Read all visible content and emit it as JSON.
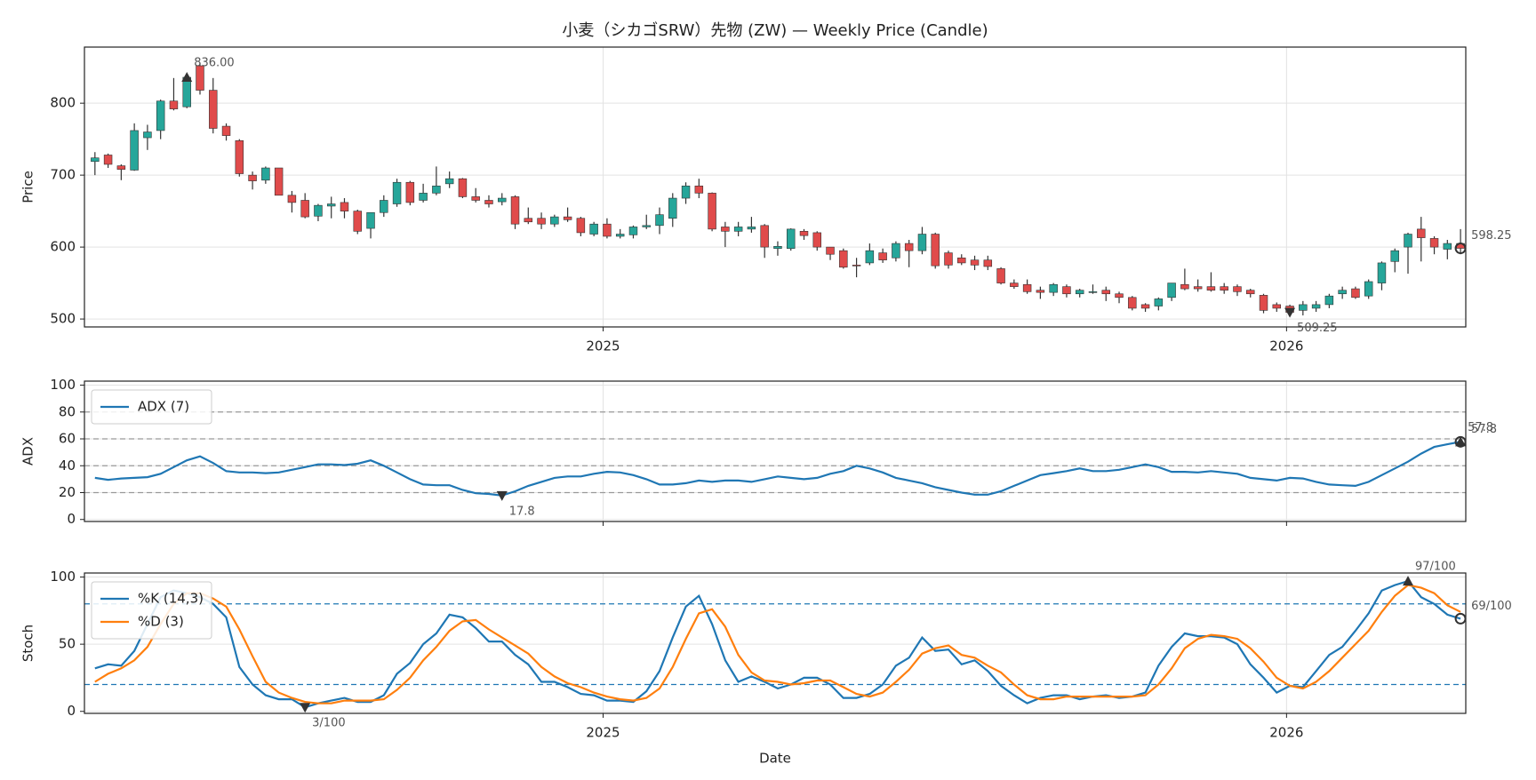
{
  "chart_data": [
    {
      "type": "candlestick",
      "title": "小麦（シカゴSRW）先物 (ZW) — Weekly Price (Candle)",
      "y_label": "Price",
      "up_color": "#26a69a",
      "down_color": "#e04b4b",
      "grid": true,
      "xlim": [
        -0.8,
        104.4
      ],
      "xticks": [
        {
          "value": 38.7,
          "label": "2025"
        },
        {
          "value": 90.75,
          "label": "2026"
        }
      ],
      "ylim": [
        489,
        878
      ],
      "yticks": [
        500,
        600,
        700,
        800
      ],
      "open": [
        719,
        728,
        713,
        707,
        752,
        762,
        803,
        795,
        852,
        818,
        768,
        748,
        700,
        693,
        710,
        672,
        665,
        643,
        657,
        662,
        650,
        626,
        648,
        660,
        690,
        665,
        675,
        688,
        695,
        670,
        665,
        663,
        670,
        640,
        640,
        632,
        642,
        640,
        618,
        632,
        615,
        617,
        628,
        630,
        640,
        668,
        685,
        675,
        628,
        622,
        625,
        630,
        598,
        598,
        622,
        620,
        600,
        595,
        575,
        578,
        592,
        585,
        605,
        595,
        618,
        592,
        585,
        582,
        582,
        570,
        550,
        548,
        540,
        537,
        545,
        535,
        537,
        540,
        535,
        530,
        520,
        518,
        530,
        548,
        545,
        545,
        545,
        545,
        540,
        533,
        520,
        518,
        512,
        515,
        520,
        535,
        542,
        532,
        550,
        580,
        600,
        625,
        612,
        597,
        605
      ],
      "high": [
        732,
        730,
        715,
        772,
        770,
        805,
        835,
        836,
        856,
        835,
        772,
        750,
        705,
        712,
        710,
        678,
        675,
        660,
        670,
        668,
        652,
        648,
        672,
        695,
        692,
        688,
        712,
        705,
        696,
        682,
        672,
        675,
        672,
        655,
        648,
        645,
        655,
        642,
        635,
        640,
        625,
        630,
        645,
        655,
        675,
        690,
        695,
        676,
        635,
        635,
        642,
        632,
        608,
        626,
        625,
        622,
        600,
        598,
        585,
        605,
        598,
        608,
        610,
        628,
        620,
        595,
        590,
        588,
        588,
        572,
        555,
        555,
        545,
        550,
        548,
        542,
        548,
        545,
        538,
        532,
        522,
        530,
        550,
        570,
        555,
        565,
        550,
        548,
        542,
        535,
        523,
        520,
        525,
        525,
        535,
        545,
        545,
        555,
        580,
        598,
        620,
        642,
        615,
        610,
        625
      ],
      "low": [
        700,
        710,
        693,
        706,
        735,
        750,
        790,
        793,
        812,
        758,
        748,
        698,
        680,
        688,
        672,
        648,
        640,
        636,
        640,
        640,
        618,
        612,
        642,
        656,
        658,
        662,
        672,
        682,
        668,
        662,
        655,
        658,
        625,
        632,
        625,
        628,
        635,
        615,
        615,
        612,
        612,
        612,
        625,
        618,
        628,
        660,
        668,
        622,
        600,
        615,
        620,
        585,
        588,
        595,
        610,
        595,
        582,
        570,
        558,
        575,
        578,
        580,
        572,
        590,
        570,
        570,
        575,
        568,
        568,
        548,
        542,
        535,
        528,
        532,
        530,
        530,
        535,
        525,
        522,
        512,
        510,
        512,
        525,
        540,
        538,
        538,
        535,
        532,
        530,
        508,
        510,
        507,
        505,
        510,
        515,
        528,
        528,
        528,
        540,
        565,
        563,
        580,
        590,
        583,
        590
      ],
      "close": [
        724,
        715,
        708,
        762,
        760,
        803,
        792,
        836,
        818,
        765,
        755,
        702,
        692,
        710,
        672,
        662,
        642,
        658,
        660,
        650,
        622,
        648,
        665,
        690,
        662,
        675,
        685,
        695,
        670,
        665,
        660,
        668,
        632,
        635,
        632,
        642,
        638,
        620,
        632,
        615,
        618,
        628,
        630,
        645,
        668,
        685,
        675,
        625,
        622,
        628,
        628,
        600,
        601,
        625,
        616,
        600,
        590,
        572,
        574,
        595,
        582,
        605,
        595,
        618,
        574,
        575,
        578,
        575,
        573,
        550,
        545,
        538,
        537,
        548,
        535,
        540,
        538,
        535,
        530,
        515,
        515,
        528,
        550,
        542,
        542,
        540,
        540,
        538,
        535,
        512,
        515,
        509.25,
        520,
        520,
        532,
        540,
        530,
        552,
        578,
        595,
        618,
        613,
        600,
        605,
        598.25
      ],
      "annotations": [
        {
          "index": 7,
          "value": 836,
          "label": "836.00",
          "marker": "^"
        },
        {
          "index": 91,
          "value": 509.25,
          "marker": "v"
        },
        {
          "index": 104,
          "value": 598.25,
          "marker": "o"
        }
      ]
    },
    {
      "type": "line",
      "y_label": "ADX",
      "grid": true,
      "legend": "upper left",
      "xlim": [
        -0.8,
        104.4
      ],
      "ylim": [
        -1.5,
        103
      ],
      "yticks": [
        0,
        20,
        40,
        60,
        80,
        100
      ],
      "hlines": [
        20,
        40,
        60,
        80
      ],
      "hline_color": "#999999",
      "series": [
        {
          "name": "ADX (7)",
          "color": "#1f77b4",
          "values": [
            31,
            29.5,
            30.5,
            31,
            31.5,
            34,
            39,
            44,
            47,
            42,
            36,
            35,
            35,
            34.5,
            35,
            37,
            39,
            41,
            41,
            40.5,
            41.5,
            44,
            40,
            35,
            30,
            26,
            25.5,
            25.5,
            22,
            19.5,
            19,
            17.8,
            21,
            25,
            28,
            31,
            32,
            32,
            34,
            35.5,
            35,
            33,
            30,
            26,
            26,
            27,
            29,
            28,
            29,
            29,
            28,
            30,
            32,
            31,
            30,
            31,
            34,
            36,
            40,
            38,
            35,
            31,
            29,
            27,
            24,
            22,
            20,
            18.5,
            18.5,
            21,
            25,
            29,
            33,
            34.5,
            36,
            38,
            36,
            36,
            37,
            39,
            41,
            39,
            35.5,
            35.5,
            35,
            36,
            35,
            34,
            31,
            30,
            29,
            31,
            30.5,
            28,
            26,
            25.5,
            25,
            28,
            33,
            38,
            43,
            49,
            54,
            56,
            57.8
          ]
        }
      ],
      "annotations": [
        {
          "index": 31,
          "value": 17.8,
          "marker": "v"
        },
        {
          "index": 104,
          "value": 57.8,
          "marker": "^"
        },
        {
          "index": 104,
          "value": 57.8,
          "marker": "o"
        }
      ]
    },
    {
      "type": "line",
      "y_label": "Stoch",
      "x_label": "Date",
      "grid": true,
      "legend": "upper left",
      "xlim": [
        -0.8,
        104.4
      ],
      "xticks": [
        {
          "value": 38.7,
          "label": "2025"
        },
        {
          "value": 90.75,
          "label": "2026"
        }
      ],
      "ylim": [
        -1.5,
        103
      ],
      "yticks": [
        0,
        50,
        100
      ],
      "hlines": [
        20,
        80
      ],
      "hline_color": "#1f77b4",
      "series": [
        {
          "name": "%K (14,3)",
          "color": "#1f77b4",
          "values": [
            32,
            35,
            34,
            45,
            65,
            85,
            90,
            88,
            85,
            80,
            70,
            33,
            20,
            12,
            9,
            9,
            3,
            6,
            8,
            10,
            7,
            7,
            12,
            28,
            36,
            50,
            58,
            72,
            70,
            62,
            52,
            52,
            42,
            35,
            22,
            22,
            18,
            13,
            12,
            8,
            8,
            7,
            15,
            30,
            55,
            78,
            86,
            65,
            38,
            22,
            26,
            22,
            17,
            20,
            25,
            25,
            20,
            10,
            10,
            13,
            20,
            34,
            40,
            55,
            45,
            46,
            35,
            38,
            30,
            19,
            12,
            6,
            10,
            12,
            12,
            9,
            11,
            12,
            10,
            11,
            14,
            34,
            48,
            58,
            56,
            56,
            55,
            50,
            35,
            25,
            14,
            19,
            18,
            30,
            42,
            48,
            60,
            73,
            90,
            94,
            97,
            85,
            80,
            72,
            69
          ]
        },
        {
          "name": "%D (3)",
          "color": "#ff7f0e",
          "values": [
            22,
            28,
            32,
            38,
            48,
            65,
            80,
            88,
            88,
            84,
            78,
            61,
            41,
            22,
            14,
            10,
            7,
            6,
            6,
            8,
            8,
            8,
            9,
            16,
            25,
            38,
            48,
            60,
            67,
            68,
            61,
            55,
            49,
            43,
            33,
            26,
            21,
            18,
            14,
            11,
            9,
            8,
            10,
            17,
            33,
            54,
            73,
            76,
            63,
            42,
            29,
            23,
            22,
            20,
            21,
            23,
            23,
            18,
            13,
            11,
            14,
            22,
            31,
            43,
            47,
            49,
            42,
            40,
            34,
            29,
            20,
            12,
            9,
            9,
            11,
            11,
            11,
            11,
            11,
            11,
            12,
            20,
            32,
            47,
            54,
            57,
            56,
            54,
            47,
            37,
            25,
            19,
            17,
            22,
            30,
            40,
            50,
            60,
            74,
            86,
            94,
            92,
            88,
            79,
            74
          ]
        }
      ],
      "annotations": [
        {
          "index": 16,
          "value": 3,
          "label": "3/100",
          "marker": "v"
        },
        {
          "index": 100,
          "value": 97,
          "label": "97/100",
          "marker": "^"
        },
        {
          "index": 104,
          "value": 69,
          "label": "69/100",
          "marker": "o"
        }
      ]
    }
  ]
}
